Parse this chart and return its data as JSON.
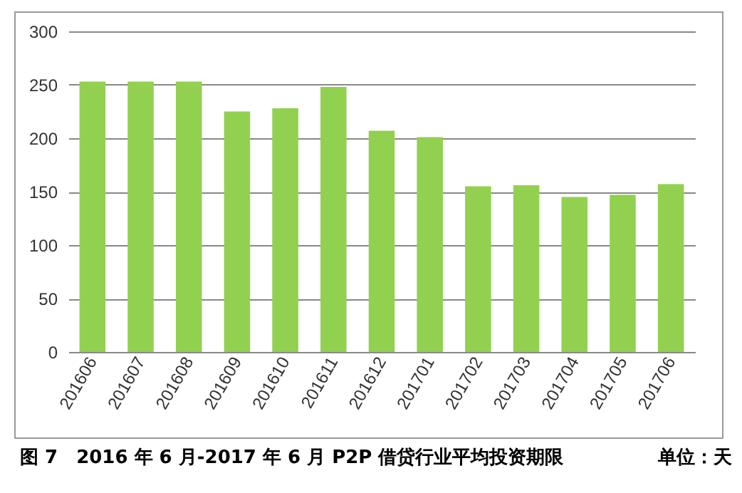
{
  "chart_data": {
    "type": "bar",
    "title": "图 7　2016 年 6 月-2017 年 6 月 P2P 借贷行业平均投资期限",
    "annotations": [
      "单位：天"
    ],
    "categories": [
      "201606",
      "201607",
      "201608",
      "201609",
      "201610",
      "201611",
      "201612",
      "201701",
      "201702",
      "201703",
      "201704",
      "201705",
      "201706"
    ],
    "values": [
      253,
      253,
      253,
      225,
      228,
      248,
      207,
      201,
      155,
      156,
      145,
      147,
      157
    ],
    "color": "#92d050",
    "ylim": [
      0,
      300
    ],
    "yticks": [
      0,
      50,
      100,
      150,
      200,
      250,
      300
    ],
    "grid": "y"
  }
}
